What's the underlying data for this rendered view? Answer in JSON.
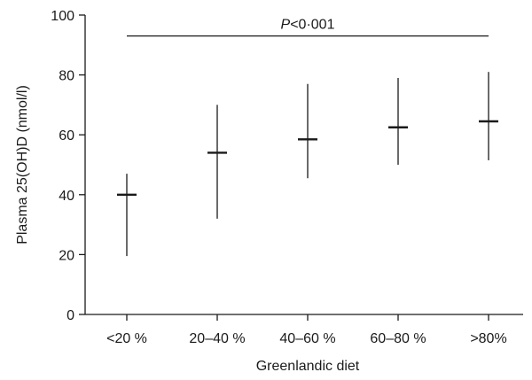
{
  "chart_data": {
    "type": "scatter",
    "xlabel": "Greenlandic diet",
    "ylabel": "Plasma 25(OH)D (nmol/l)",
    "ylim": [
      0,
      100
    ],
    "yticks": [
      "0",
      "20",
      "40",
      "60",
      "80",
      "100"
    ],
    "categories": [
      "<20 %",
      "20–40 %",
      "40–60 %",
      "60–80 %",
      ">80%"
    ],
    "medians": [
      40,
      54,
      58.5,
      62.5,
      64.5
    ],
    "range_low": [
      19.5,
      32,
      45.5,
      50,
      51.5
    ],
    "range_high": [
      47,
      70,
      77,
      79,
      81
    ],
    "annotation": {
      "p_symbol": "P",
      "p_text": "<0·001",
      "y": 93
    }
  }
}
